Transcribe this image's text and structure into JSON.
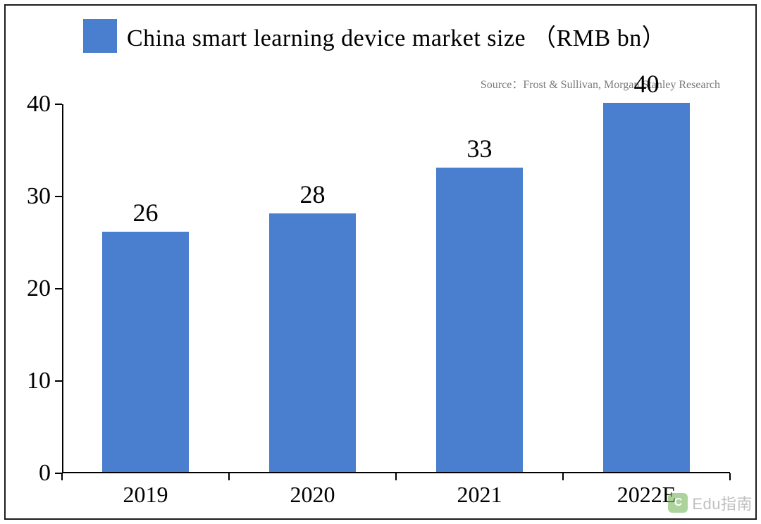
{
  "chart": {
    "type": "bar",
    "title": "China smart learning device market size （RMB bn）",
    "source_label": "Source：Frost & Sullivan,   Morgan Stanley Research",
    "categories": [
      "2019",
      "2020",
      "2021",
      "2022E"
    ],
    "values": [
      26,
      28,
      33,
      40
    ],
    "bar_color": "#4a7ecf",
    "legend_swatch_color": "#4a7ecf",
    "background_color": "#ffffff",
    "border_color": "#1c1c1c",
    "axis_color": "#000000",
    "title_color": "#000000",
    "title_fontsize": 34,
    "source_color": "#7a7a7a",
    "source_fontsize": 16,
    "tick_label_fontsize": 34,
    "x_label_fontsize": 32,
    "value_label_fontsize": 36,
    "value_label_color": "#000000",
    "ylim": [
      0,
      40
    ],
    "ytick_step": 10,
    "yticks": [
      0,
      10,
      20,
      30,
      40
    ],
    "bar_width_ratio": 0.52,
    "font_family": "Times New Roman, Times, serif"
  },
  "watermark": {
    "icon_letter": "C",
    "text": "Edu指南",
    "icon_bg": "#6ab04c",
    "text_color": "#8c8c8c"
  }
}
